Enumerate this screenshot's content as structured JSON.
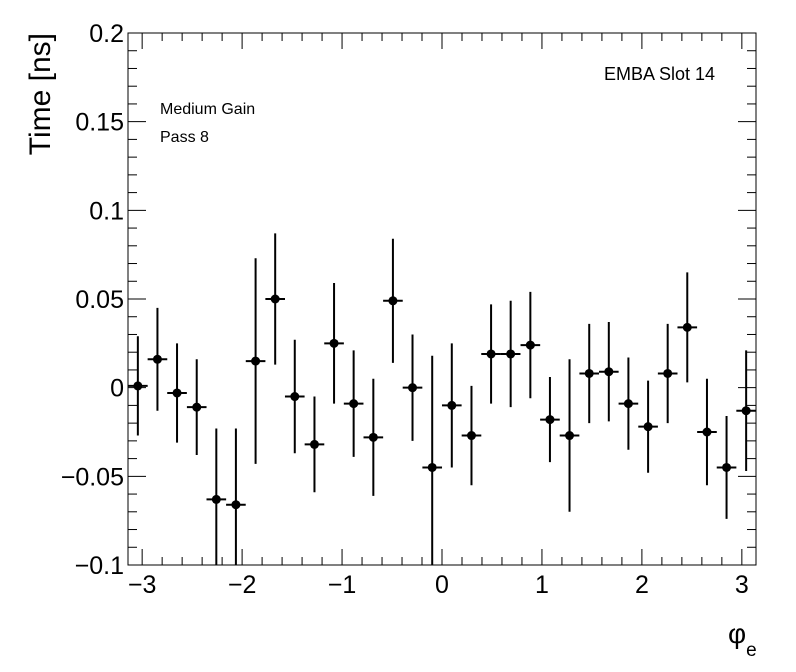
{
  "chart_data": {
    "type": "scatter",
    "style": "error-bars",
    "title": "",
    "xlabel": "φ",
    "xlabel_subscript": "e",
    "ylabel": "Time [ns]",
    "xlim": [
      -3.1416,
      3.1416
    ],
    "ylim": [
      -0.1,
      0.2
    ],
    "x_ticks": [
      -3,
      -2,
      -1,
      0,
      1,
      2,
      3
    ],
    "x_tick_labels": [
      "−3",
      "−2",
      "−1",
      "0",
      "1",
      "2",
      "3"
    ],
    "y_ticks": [
      -0.1,
      -0.05,
      0,
      0.05,
      0.1,
      0.15,
      0.2
    ],
    "y_tick_labels": [
      "−0.1",
      "−0.05",
      "0",
      "0.05",
      "0.1",
      "0.15",
      "0.2"
    ],
    "grid": false,
    "annotations": {
      "top_right": "EMBA Slot 14",
      "line1": "Medium Gain",
      "line2": "Pass 8"
    },
    "marker_color": "#000000",
    "x_half_width": 0.0982,
    "series": [
      {
        "x": [
          -3.043,
          -2.847,
          -2.651,
          -2.454,
          -2.258,
          -2.062,
          -1.865,
          -1.669,
          -1.473,
          -1.276,
          -1.08,
          -0.884,
          -0.687,
          -0.491,
          -0.295,
          -0.098,
          0.098,
          0.295,
          0.491,
          0.687,
          0.884,
          1.08,
          1.276,
          1.473,
          1.669,
          1.865,
          2.062,
          2.258,
          2.454,
          2.651,
          2.847,
          3.043
        ],
        "y": [
          0.001,
          0.016,
          -0.003,
          -0.011,
          -0.063,
          -0.066,
          0.015,
          0.05,
          -0.005,
          -0.032,
          0.025,
          -0.009,
          -0.028,
          0.049,
          0.0,
          -0.045,
          -0.01,
          -0.027,
          0.019,
          0.019,
          0.024,
          -0.018,
          -0.027,
          0.008,
          0.009,
          -0.009,
          -0.022,
          0.008,
          0.034,
          -0.025,
          -0.045,
          -0.013
        ],
        "err": [
          0.028,
          0.029,
          0.028,
          0.027,
          0.04,
          0.043,
          0.058,
          0.037,
          0.032,
          0.027,
          0.034,
          0.03,
          0.033,
          0.035,
          0.03,
          0.063,
          0.035,
          0.028,
          0.028,
          0.03,
          0.03,
          0.024,
          0.043,
          0.028,
          0.028,
          0.026,
          0.026,
          0.028,
          0.031,
          0.03,
          0.029,
          0.034
        ]
      }
    ]
  }
}
